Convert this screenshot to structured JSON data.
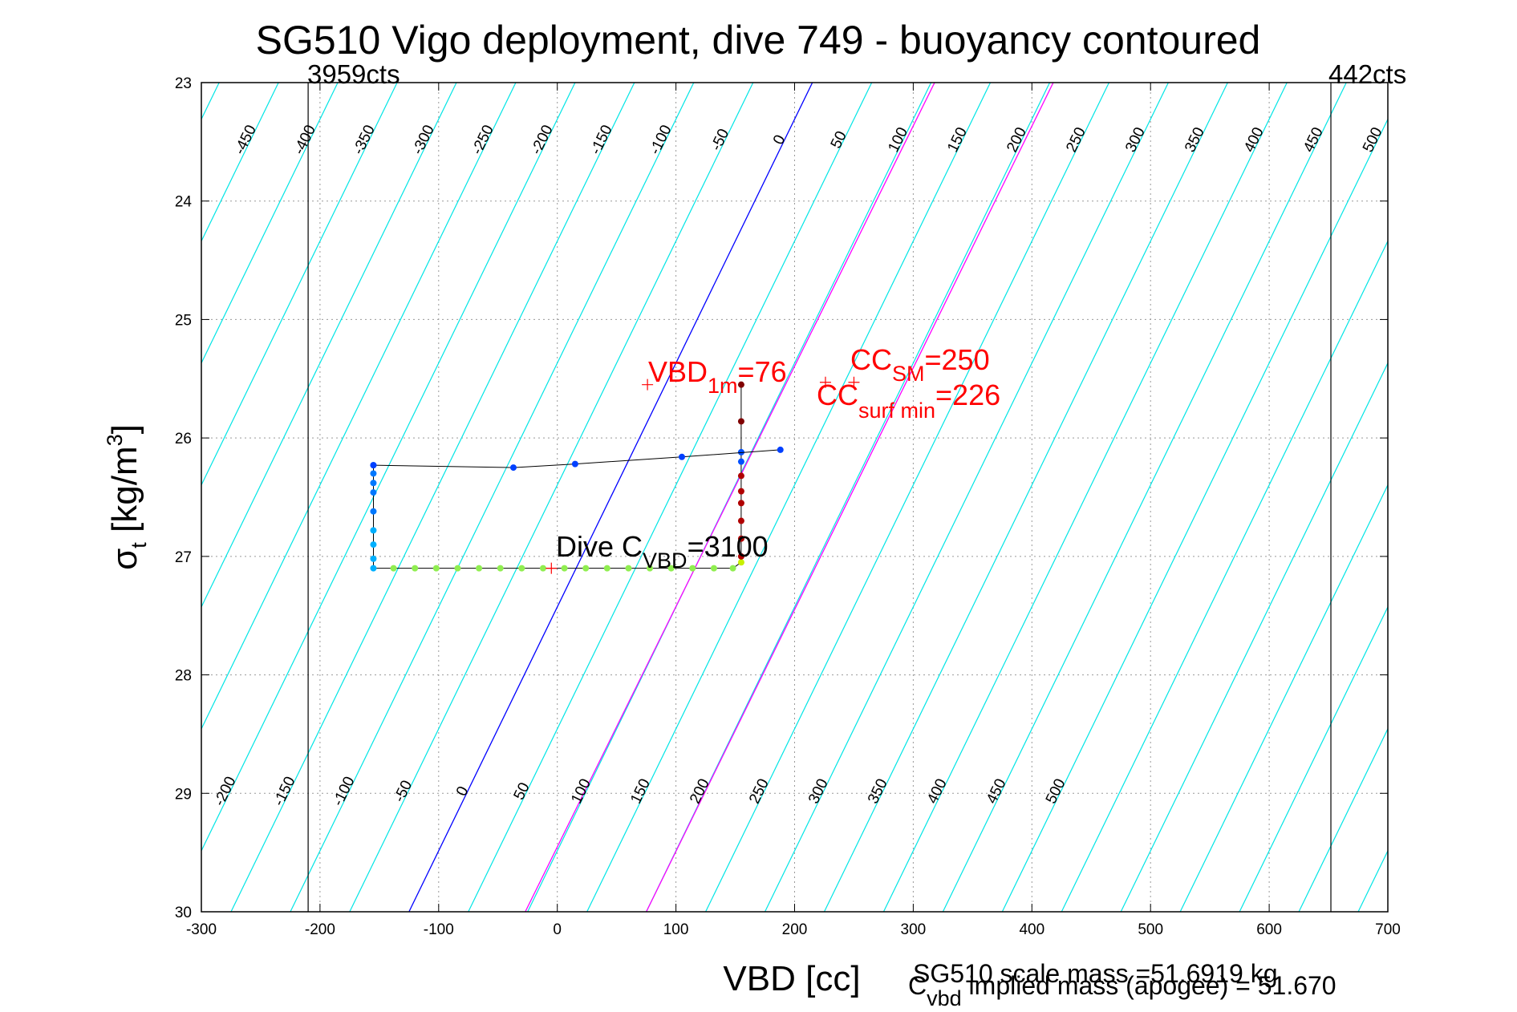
{
  "chart_data": {
    "type": "line",
    "title": "SG510 Vigo deployment, dive 749 - buoyancy contoured",
    "xlabel": "VBD [cc]",
    "ylabel": {
      "main": "σ",
      "sub": "t",
      "units": " [kg/m",
      "sup": "3",
      "close": "]"
    },
    "xlim": [
      -300,
      700
    ],
    "ylim": [
      23,
      30
    ],
    "y_reversed": true,
    "grid": true,
    "x_ticks": [
      "-300",
      "-200",
      "-100",
      "0",
      "100",
      "200",
      "300",
      "400",
      "500",
      "600",
      "700"
    ],
    "y_ticks": [
      "23",
      "24",
      "25",
      "26",
      "27",
      "28",
      "29",
      "30"
    ],
    "colors": {
      "contour": "#00e5e5",
      "zero_contour": "#0000ff",
      "cc_contour": "#ff00ff",
      "frame": "#000000",
      "annotation": "#ff0000"
    },
    "buoyancy_contours": {
      "levels_top": [
        "-450",
        "-400",
        "-350",
        "-300",
        "-250",
        "-200",
        "-150",
        "-100",
        "-50",
        "0",
        "50",
        "100",
        "150",
        "200",
        "250",
        "300",
        "350",
        "400",
        "450",
        "500"
      ],
      "levels_bottom": [
        "-200",
        "-150",
        "-100",
        "-50",
        "0",
        "50",
        "100",
        "150",
        "200",
        "250",
        "300",
        "350",
        "400",
        "450",
        "500"
      ],
      "zero_line": {
        "x_at_sigma23": 215,
        "x_at_sigma30": -125
      },
      "cc_lines": [
        {
          "level": "CC_SM",
          "x_at_sigma23": 318,
          "x_at_sigma30": -27
        },
        {
          "level": "CC_surf_min",
          "x_at_sigma23": 418,
          "x_at_sigma30": 75
        }
      ]
    },
    "vbd_limits": [
      {
        "x": -210,
        "label": "3959cts"
      },
      {
        "x": 652,
        "label": "442cts"
      }
    ],
    "series": [
      {
        "points": [
          [
            -155,
            26.23
          ],
          [
            -155,
            26.3
          ],
          [
            -155,
            26.38
          ],
          [
            -155,
            26.46
          ],
          [
            -155,
            26.62
          ],
          [
            -155,
            26.78
          ],
          [
            -155,
            26.9
          ],
          [
            -155,
            27.02
          ],
          [
            -155,
            27.1
          ],
          [
            -138,
            27.1
          ],
          [
            -120,
            27.1
          ],
          [
            -102,
            27.1
          ],
          [
            -84,
            27.1
          ],
          [
            -66,
            27.1
          ],
          [
            -48,
            27.1
          ],
          [
            -30,
            27.1
          ],
          [
            -12,
            27.1
          ],
          [
            6,
            27.1
          ],
          [
            24,
            27.1
          ],
          [
            42,
            27.1
          ],
          [
            60,
            27.1
          ],
          [
            78,
            27.1
          ],
          [
            96,
            27.1
          ],
          [
            114,
            27.1
          ],
          [
            132,
            27.1
          ],
          [
            148,
            27.1
          ],
          [
            155,
            27.05
          ],
          [
            155,
            27.0
          ],
          [
            155,
            26.85
          ],
          [
            155,
            26.7
          ],
          [
            155,
            26.55
          ],
          [
            155,
            26.45
          ],
          [
            155,
            26.32
          ],
          [
            155,
            26.2
          ],
          [
            155,
            26.12
          ],
          [
            155,
            25.86
          ],
          [
            155,
            25.55
          ]
        ]
      },
      {
        "points": [
          [
            -155,
            26.23
          ],
          [
            -37,
            26.25
          ],
          [
            15,
            26.22
          ],
          [
            105,
            26.16
          ],
          [
            188,
            26.1
          ]
        ]
      }
    ],
    "markers": [
      {
        "name": "VBD_1m",
        "x": 76,
        "y": 25.55
      },
      {
        "name": "CC_SM",
        "x": 250,
        "y": 25.53
      },
      {
        "name": "CC_surf_min",
        "x": 226,
        "y": 25.53
      },
      {
        "name": "Dive_C_VBD",
        "x": -5,
        "y": 27.1
      }
    ],
    "annotations": {
      "vbd1m": {
        "main": "VBD",
        "sub": "1m",
        "value": "=76"
      },
      "ccsm": {
        "main": "CC",
        "sub": "SM",
        "value": "=250"
      },
      "ccsurf": {
        "main": "CC",
        "sub": "surf min",
        "value": "=226"
      },
      "dive": {
        "main": "Dive C",
        "sub": "VBD",
        "value": "=3100"
      }
    },
    "footnotes": {
      "scale_mass": "SG510 scale mass =51.6919 kg",
      "implied": {
        "main": "C",
        "sub": "vbd",
        "value": " implied mass (apogee) = 51.670"
      }
    }
  }
}
